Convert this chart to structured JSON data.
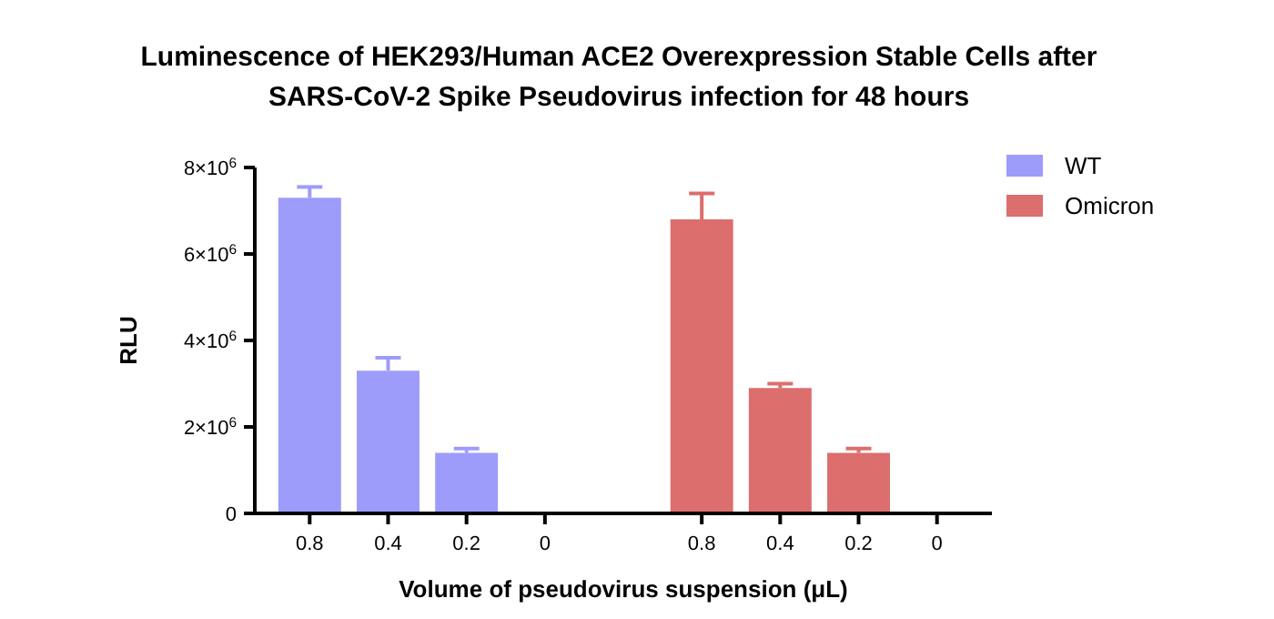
{
  "chart_data": {
    "type": "bar",
    "title": "Luminescence of HEK293/Human ACE2 Overexpression Stable Cells after SARS-CoV-2 Spike Pseudovirus infection for 48 hours",
    "xlabel": "Volume of pseudovirus suspension (μL)",
    "ylabel": "RLU",
    "categories": [
      "0.8",
      "0.4",
      "0.2",
      "0",
      null,
      "0.8",
      "0.4",
      "0.2",
      "0"
    ],
    "series": [
      {
        "name": "WT",
        "color": "#9d9cfb",
        "values": [
          7300000,
          3300000,
          1400000,
          0,
          null,
          null,
          null,
          null,
          null
        ],
        "errors": [
          250000,
          300000,
          100000,
          null,
          null,
          null,
          null,
          null,
          null
        ]
      },
      {
        "name": "Omicron",
        "color": "#dc6e6e",
        "values": [
          null,
          null,
          null,
          null,
          null,
          6800000,
          2900000,
          1400000,
          0
        ],
        "errors": [
          null,
          null,
          null,
          null,
          null,
          600000,
          100000,
          100000,
          null
        ]
      }
    ],
    "ylim": [
      0,
      8000000
    ],
    "yticks": [
      0,
      {
        "value": 2000000,
        "label": "2×10$^{6}$"
      },
      {
        "value": 4000000,
        "label": "4×10$^{6}$"
      },
      {
        "value": 6000000,
        "label": "6×10$^{6}$"
      },
      {
        "value": 8000000,
        "label": "8×10$^{6}$"
      }
    ],
    "grid": false,
    "legend": "top right"
  }
}
